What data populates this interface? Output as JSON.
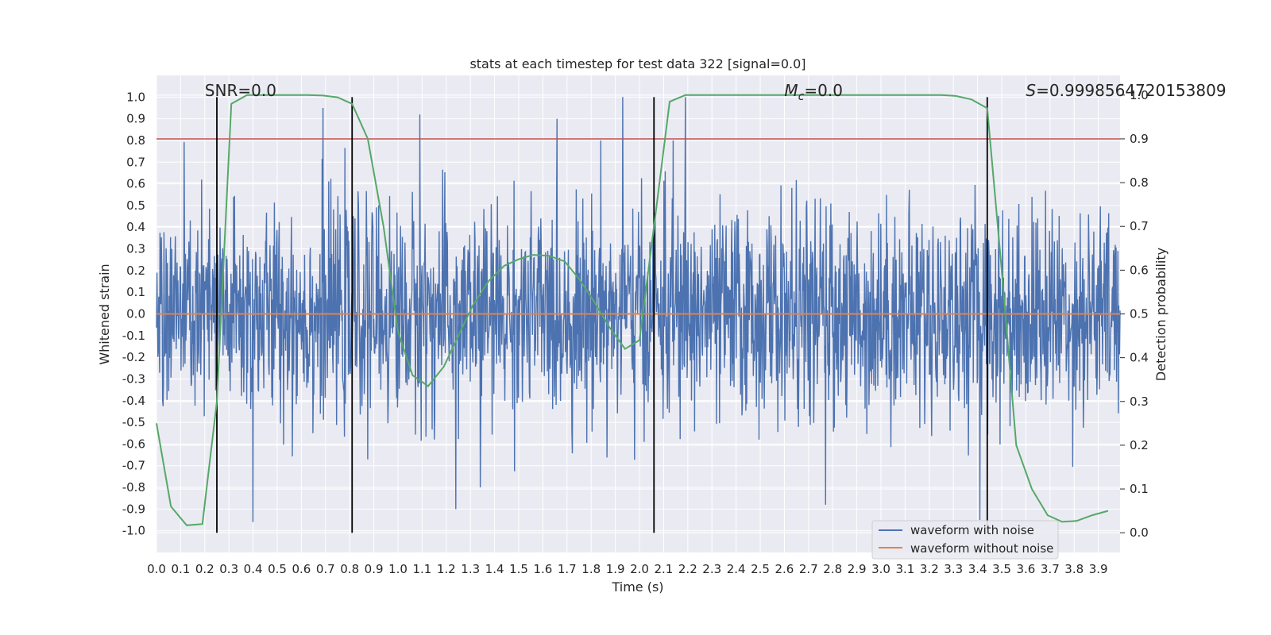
{
  "chart_data": {
    "type": "line",
    "title": "stats at each timestep for test data 322 [signal=0.0]",
    "xlabel": "Time (s)",
    "ylabel": "Whitened strain",
    "y2label": "Detection probability",
    "xlim": [
      0.0,
      3.99
    ],
    "ylim": [
      -1.1,
      1.1
    ],
    "y2lim": [
      -0.045,
      1.045
    ],
    "x_ticks": [
      "0.0",
      "0.1",
      "0.2",
      "0.3",
      "0.4",
      "0.5",
      "0.6",
      "0.7",
      "0.8",
      "0.9",
      "1.0",
      "1.1",
      "1.2",
      "1.3",
      "1.4",
      "1.5",
      "1.6",
      "1.7",
      "1.8",
      "1.9",
      "2.0",
      "2.1",
      "2.2",
      "2.3",
      "2.4",
      "2.5",
      "2.6",
      "2.7",
      "2.8",
      "2.9",
      "3.0",
      "3.1",
      "3.2",
      "3.3",
      "3.4",
      "3.5",
      "3.6",
      "3.7",
      "3.8",
      "3.9"
    ],
    "y_ticks": [
      "1.0",
      "0.9",
      "0.8",
      "0.7",
      "0.6",
      "0.5",
      "0.4",
      "0.3",
      "0.2",
      "0.1",
      "0.0",
      "-0.1",
      "-0.2",
      "-0.3",
      "-0.4",
      "-0.5",
      "-0.6",
      "-0.7",
      "-0.8",
      "-0.9",
      "-1.0"
    ],
    "y2_ticks": [
      "1.0",
      "0.9",
      "0.8",
      "0.7",
      "0.6",
      "0.5",
      "0.4",
      "0.3",
      "0.2",
      "0.1",
      "0.0"
    ],
    "grid": true,
    "legend_position": "lower-right",
    "annotations": [
      {
        "id": "snr",
        "text": "SNR=0.0",
        "x": 0.2
      },
      {
        "id": "mc",
        "text": "Mc=0.0",
        "x": 2.6
      },
      {
        "id": "s",
        "text": "S=0.9998564720153809",
        "x": 3.6
      }
    ],
    "threshold_line": {
      "axis": "y2",
      "value": 0.9,
      "color": "#c44e52"
    },
    "vertical_lines_x": [
      0.25,
      0.81,
      2.06,
      3.44
    ],
    "series": [
      {
        "name": "waveform with noise",
        "color": "#4c72b0",
        "kind": "noise",
        "axis": "y1",
        "peak_values": [
          {
            "x": 0.69,
            "y": 0.95
          },
          {
            "x": 1.09,
            "y": 0.92
          },
          {
            "x": 1.84,
            "y": 0.8
          },
          {
            "x": 1.93,
            "y": 1.0
          },
          {
            "x": 2.19,
            "y": 1.0
          },
          {
            "x": 2.14,
            "y": 0.8
          },
          {
            "x": 0.4,
            "y": -0.96
          },
          {
            "x": 1.34,
            "y": -0.8
          },
          {
            "x": 1.24,
            "y": -0.9
          },
          {
            "x": 2.77,
            "y": -0.88
          },
          {
            "x": 3.41,
            "y": -0.95
          }
        ],
        "amplitude_range": [
          -1.0,
          1.0
        ]
      },
      {
        "name": "waveform without noise",
        "color": "#dd8452",
        "kind": "flat",
        "axis": "y1",
        "x": [
          0.0,
          3.99
        ],
        "y": [
          0.0,
          0.0
        ]
      },
      {
        "name": "Detection probability",
        "color": "#55a868",
        "kind": "line",
        "axis": "y2",
        "x": [
          0.0,
          0.06,
          0.125,
          0.19,
          0.25,
          0.31,
          0.375,
          0.44,
          0.5,
          0.56,
          0.625,
          0.69,
          0.75,
          0.81,
          0.875,
          0.94,
          1.0,
          1.06,
          1.125,
          1.19,
          1.25,
          1.31,
          1.375,
          1.44,
          1.5,
          1.56,
          1.625,
          1.69,
          1.75,
          1.81,
          1.875,
          1.94,
          2.0,
          2.06,
          2.125,
          2.19,
          2.25,
          2.31,
          2.375,
          2.44,
          2.5,
          2.56,
          2.625,
          2.69,
          2.75,
          2.81,
          2.875,
          2.94,
          3.0,
          3.06,
          3.125,
          3.19,
          3.25,
          3.31,
          3.375,
          3.44,
          3.5,
          3.56,
          3.625,
          3.69,
          3.75,
          3.81,
          3.875,
          3.94
        ],
        "y": [
          0.25,
          0.06,
          0.017,
          0.02,
          0.3,
          0.98,
          1.0,
          1.0,
          1.0,
          1.0,
          1.0,
          0.999,
          0.995,
          0.98,
          0.9,
          0.7,
          0.46,
          0.36,
          0.335,
          0.38,
          0.45,
          0.52,
          0.575,
          0.61,
          0.625,
          0.635,
          0.633,
          0.62,
          0.58,
          0.53,
          0.47,
          0.42,
          0.44,
          0.7,
          0.985,
          1.0,
          1.0,
          1.0,
          1.0,
          1.0,
          1.0,
          1.0,
          1.0,
          1.0,
          1.0,
          1.0,
          1.0,
          1.0,
          1.0,
          1.0,
          1.0,
          1.0,
          1.0,
          0.998,
          0.99,
          0.97,
          0.6,
          0.2,
          0.1,
          0.04,
          0.025,
          0.027,
          0.04,
          0.05
        ]
      }
    ]
  }
}
